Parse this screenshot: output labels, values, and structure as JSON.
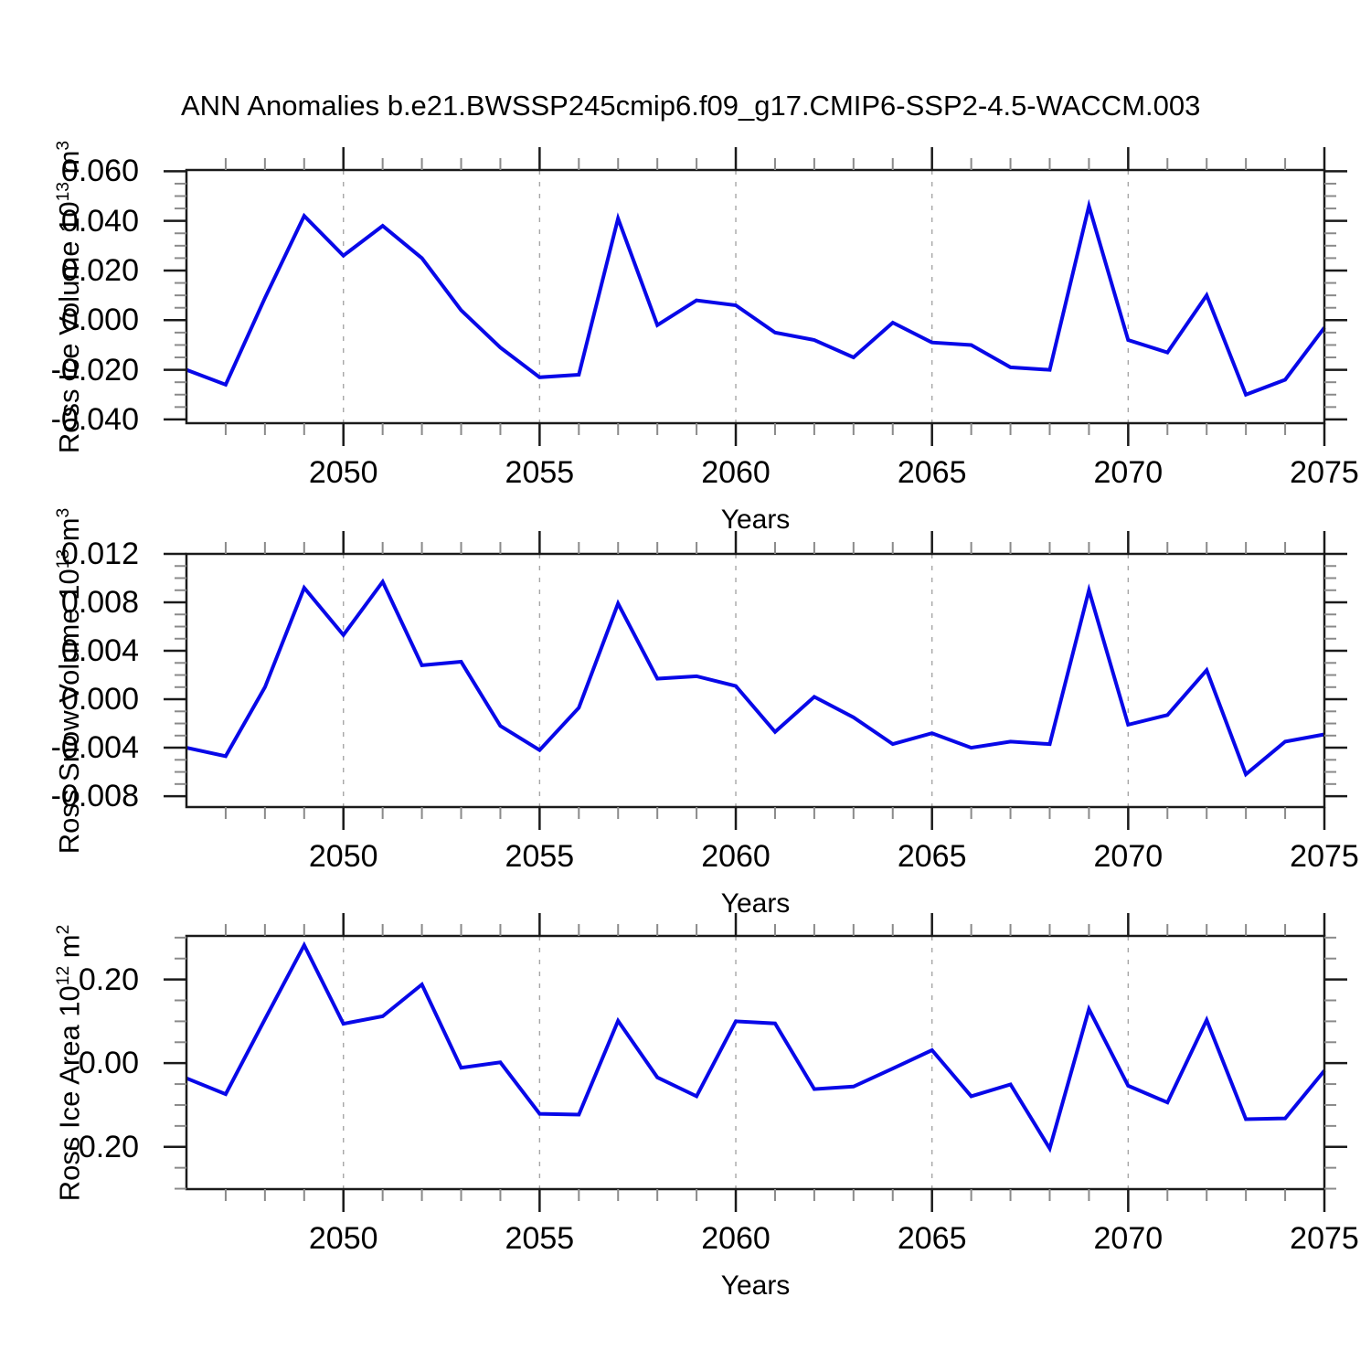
{
  "title": "ANN Anomalies b.e21.BWSSP245cmip6.f09_g17.CMIP6-SSP2-4.5-WACCM.003",
  "colors": {
    "line": "#0808e8",
    "axis": "#1a1a1a",
    "minor_tick": "#8a8a8a",
    "gridline": "#a6a6a6",
    "background": "#ffffff",
    "text": "#000000"
  },
  "x_axis": {
    "label": "Years",
    "range": [
      2046,
      2075
    ],
    "tick_labels": [
      "2050",
      "2055",
      "2060",
      "2065",
      "2070",
      "2075"
    ],
    "tick_values": [
      2050,
      2055,
      2060,
      2065,
      2070,
      2075
    ],
    "minor_step": 1,
    "gridline_years": [
      2050,
      2055,
      2060,
      2065,
      2070
    ]
  },
  "chart_data": [
    {
      "type": "line",
      "title": "",
      "ylabel": {
        "prefix": "Ross Ice Volume 10",
        "exp": "13",
        "unit": " m",
        "unit_exp": "3"
      },
      "xlabel": "Years",
      "x": [
        2046,
        2047,
        2048,
        2049,
        2050,
        2051,
        2052,
        2053,
        2054,
        2055,
        2056,
        2057,
        2058,
        2059,
        2060,
        2061,
        2062,
        2063,
        2064,
        2065,
        2066,
        2067,
        2068,
        2069,
        2070,
        2071,
        2072,
        2073,
        2074,
        2075
      ],
      "values": [
        -0.02,
        -0.026,
        0.009,
        0.042,
        0.026,
        0.038,
        0.025,
        0.004,
        -0.011,
        -0.023,
        -0.022,
        0.041,
        -0.002,
        0.008,
        0.006,
        -0.005,
        -0.008,
        -0.015,
        -0.001,
        -0.009,
        -0.01,
        -0.019,
        -0.02,
        0.046,
        -0.008,
        -0.013,
        0.01,
        -0.03,
        -0.024,
        -0.003
      ],
      "ylim": [
        -0.0415,
        0.0605
      ],
      "ytick_values": [
        0.06,
        0.04,
        0.02,
        0.0,
        -0.02,
        -0.04
      ],
      "ytick_labels": [
        "0.060",
        "0.040",
        "0.020",
        "0.000",
        "-0.020",
        "-0.040"
      ],
      "yminor_step": 0.005,
      "grid": "vertical-dashed",
      "legend": "none"
    },
    {
      "type": "line",
      "title": "",
      "ylabel": {
        "prefix": "Ross Snow Volume 10",
        "exp": "13",
        "unit": " m",
        "unit_exp": "3"
      },
      "xlabel": "Years",
      "x": [
        2046,
        2047,
        2048,
        2049,
        2050,
        2051,
        2052,
        2053,
        2054,
        2055,
        2056,
        2057,
        2058,
        2059,
        2060,
        2061,
        2062,
        2063,
        2064,
        2065,
        2066,
        2067,
        2068,
        2069,
        2070,
        2071,
        2072,
        2073,
        2074,
        2075
      ],
      "values": [
        -0.004,
        -0.0047,
        0.001,
        0.0092,
        0.0053,
        0.0097,
        0.0028,
        0.0031,
        -0.0022,
        -0.0042,
        -0.0007,
        0.0079,
        0.0017,
        0.0019,
        0.0011,
        -0.0027,
        0.0002,
        -0.0015,
        -0.0037,
        -0.0028,
        -0.004,
        -0.0035,
        -0.0037,
        0.009,
        -0.0021,
        -0.0013,
        0.0024,
        -0.0062,
        -0.0035,
        -0.0029
      ],
      "ylim": [
        -0.0089,
        0.012
      ],
      "ytick_values": [
        0.012,
        0.008,
        0.004,
        0.0,
        -0.004,
        -0.008
      ],
      "ytick_labels": [
        "0.012",
        "0.008",
        "0.004",
        "0.000",
        "-0.004",
        "-0.008"
      ],
      "yminor_step": 0.001,
      "grid": "vertical-dashed",
      "legend": "none"
    },
    {
      "type": "line",
      "title": "",
      "ylabel": {
        "prefix": "Ross Ice Area 10",
        "exp": "12",
        "unit": " m",
        "unit_exp": "2"
      },
      "xlabel": "Years",
      "x": [
        2046,
        2047,
        2048,
        2049,
        2050,
        2051,
        2052,
        2053,
        2054,
        2055,
        2056,
        2057,
        2058,
        2059,
        2060,
        2061,
        2062,
        2063,
        2064,
        2065,
        2066,
        2067,
        2068,
        2069,
        2070,
        2071,
        2072,
        2073,
        2074,
        2075
      ],
      "values": [
        -0.036,
        -0.074,
        0.105,
        0.282,
        0.094,
        0.112,
        0.188,
        -0.011,
        0.002,
        -0.121,
        -0.123,
        0.101,
        -0.034,
        -0.079,
        0.1,
        0.095,
        -0.062,
        -0.056,
        -0.013,
        0.031,
        -0.079,
        -0.051,
        -0.204,
        0.129,
        -0.054,
        -0.094,
        0.103,
        -0.134,
        -0.132,
        -0.018
      ],
      "ylim": [
        -0.301,
        0.304
      ],
      "ytick_values": [
        0.2,
        0.0,
        -0.2
      ],
      "ytick_labels": [
        "0.20",
        "0.00",
        "-0.20"
      ],
      "yminor_step": 0.05,
      "grid": "vertical-dashed",
      "legend": "none"
    }
  ]
}
